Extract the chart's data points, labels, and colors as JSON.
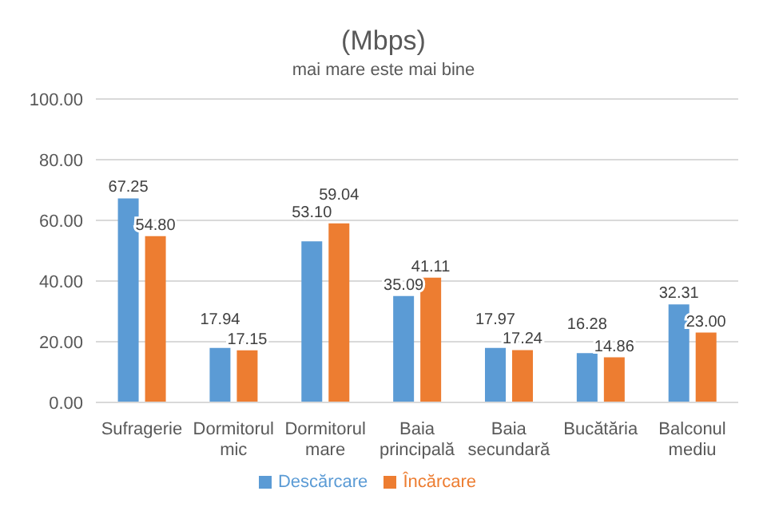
{
  "chart_data": {
    "type": "bar",
    "title": "(Mbps)",
    "subtitle": "mai mare este mai bine",
    "categories": [
      "Sufragerie",
      "Dormitorul mic",
      "Dormitorul mare",
      "Baia principală",
      "Baia secundară",
      "Bucătăria",
      "Balconul mediu"
    ],
    "series": [
      {
        "name": "Descărcare",
        "color": "#5b9bd5",
        "values": [
          67.25,
          17.94,
          53.1,
          35.09,
          17.97,
          16.28,
          32.31
        ],
        "value_labels": [
          "67.25",
          "17.94",
          "53.10",
          "35.09",
          "17.97",
          "16.28",
          "32.31"
        ]
      },
      {
        "name": "Încărcare",
        "color": "#ed7d31",
        "values": [
          54.8,
          17.15,
          59.04,
          41.11,
          17.24,
          14.86,
          23.0
        ],
        "value_labels": [
          "54.80",
          "17.15",
          "59.04",
          "41.11",
          "17.24",
          "14.86",
          "23.00"
        ]
      }
    ],
    "ylim": [
      0,
      100
    ],
    "yticks": [
      {
        "value": 0,
        "label": "0.00"
      },
      {
        "value": 20,
        "label": "20.00"
      },
      {
        "value": 40,
        "label": "40.00"
      },
      {
        "value": 60,
        "label": "60.00"
      },
      {
        "value": 80,
        "label": "80.00"
      },
      {
        "value": 100,
        "label": "100.00"
      }
    ],
    "grid": "y",
    "legend": "bottom"
  }
}
